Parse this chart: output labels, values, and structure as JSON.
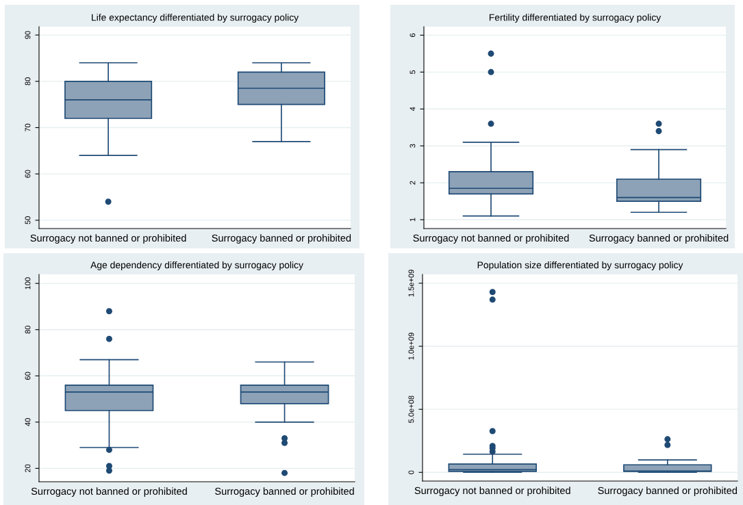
{
  "chart_data": [
    {
      "type": "box",
      "title": "Life expectancy differentiated by surrogacy policy",
      "categories": [
        "Surrogacy not banned or prohibited",
        "Surrogacy banned or prohibited"
      ],
      "series": [
        {
          "color": "#8da2b7",
          "boxes": [
            {
              "low": 64,
              "q1": 72,
              "median": 76,
              "q3": 80,
              "high": 84,
              "outliers": [
                54
              ]
            },
            {
              "low": 67,
              "q1": 75,
              "median": 78.5,
              "q3": 82,
              "high": 84
            }
          ]
        }
      ],
      "ylim": [
        48.2,
        91.8
      ],
      "yticks": [
        50,
        60,
        70,
        80,
        90
      ],
      "grid": "y"
    },
    {
      "type": "box",
      "title": "Fertility differentiated by surrogacy policy",
      "categories": [
        "Surrogacy not banned or prohibited",
        "Surrogacy banned or prohibited"
      ],
      "series": [
        {
          "color": "#8da2b7",
          "boxes": [
            {
              "low": 1.1,
              "q1": 1.7,
              "median": 1.85,
              "q3": 2.3,
              "high": 3.1,
              "outliers": [
                3.6,
                5.0,
                5.5
              ]
            },
            {
              "low": 1.2,
              "q1": 1.5,
              "median": 1.6,
              "q3": 2.1,
              "high": 2.9,
              "outliers": [
                3.4,
                3.6
              ]
            }
          ]
        }
      ],
      "ylim": [
        0.76,
        6.23
      ],
      "yticks": [
        1,
        2,
        3,
        4,
        5,
        6
      ],
      "grid": "y"
    },
    {
      "type": "box",
      "title": "Age dependency differentiated by surrogacy policy",
      "categories": [
        "Surrogacy not banned or prohibited",
        "Surrogacy banned or prohibited"
      ],
      "series": [
        {
          "color": "#8da2b7",
          "boxes": [
            {
              "low": 29,
              "q1": 45,
              "median": 53,
              "q3": 56,
              "high": 67,
              "outliers": [
                19,
                21,
                28,
                76,
                88
              ]
            },
            {
              "low": 40,
              "q1": 48,
              "median": 53,
              "q3": 56,
              "high": 66,
              "outliers": [
                18,
                31,
                33
              ]
            }
          ]
        }
      ],
      "ylim": [
        14.2,
        103.9
      ],
      "yticks": [
        20,
        40,
        60,
        80,
        100
      ],
      "grid": "y"
    },
    {
      "type": "box",
      "title": "Population size differentiated by surrogacy policy",
      "categories": [
        "Surrogacy not banned or prohibited",
        "Surrogacy banned or prohibited"
      ],
      "series": [
        {
          "color": "#8da2b7",
          "boxes": [
            {
              "low": 0,
              "q1": 8000000,
              "median": 21000000,
              "q3": 66000000,
              "high": 144000000,
              "outliers": [
                164000000,
                191000000,
                209000000,
                327000000,
                1370000000,
                1430000000
              ]
            },
            {
              "low": 0,
              "q1": 8000000,
              "median": 10000000,
              "q3": 60000000,
              "high": 99000000,
              "outliers": [
                217000000,
                263000000
              ]
            }
          ]
        }
      ],
      "ylim": [
        -69000000,
        1570000000
      ],
      "yticks": [
        0,
        {
          "value": 500000000,
          "label": "5.0e+08"
        },
        {
          "value": 1000000000,
          "label": "1.0e+09"
        },
        {
          "value": 1500000000,
          "label": "1.5e+09"
        }
      ],
      "grid": "y"
    }
  ]
}
